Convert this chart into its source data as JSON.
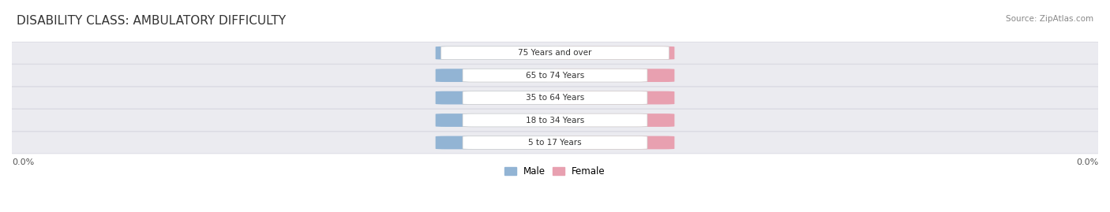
{
  "title": "DISABILITY CLASS: AMBULATORY DIFFICULTY",
  "source_text": "Source: ZipAtlas.com",
  "categories": [
    "5 to 17 Years",
    "18 to 34 Years",
    "35 to 64 Years",
    "65 to 74 Years",
    "75 Years and over"
  ],
  "male_values": [
    0.0,
    0.0,
    0.0,
    0.0,
    0.0
  ],
  "female_values": [
    0.0,
    0.0,
    0.0,
    0.0,
    0.0
  ],
  "male_color": "#92b4d4",
  "female_color": "#e8a0b0",
  "male_label": "Male",
  "female_label": "Female",
  "x_tick_left": "0.0%",
  "x_tick_right": "0.0%",
  "fig_bg_color": "#ffffff",
  "row_bg_color": "#ebebf0",
  "row_edge_color": "#d5d5de",
  "title_fontsize": 11,
  "source_fontsize": 7.5,
  "label_fontsize": 7.5,
  "value_fontsize": 7,
  "tick_fontsize": 8
}
